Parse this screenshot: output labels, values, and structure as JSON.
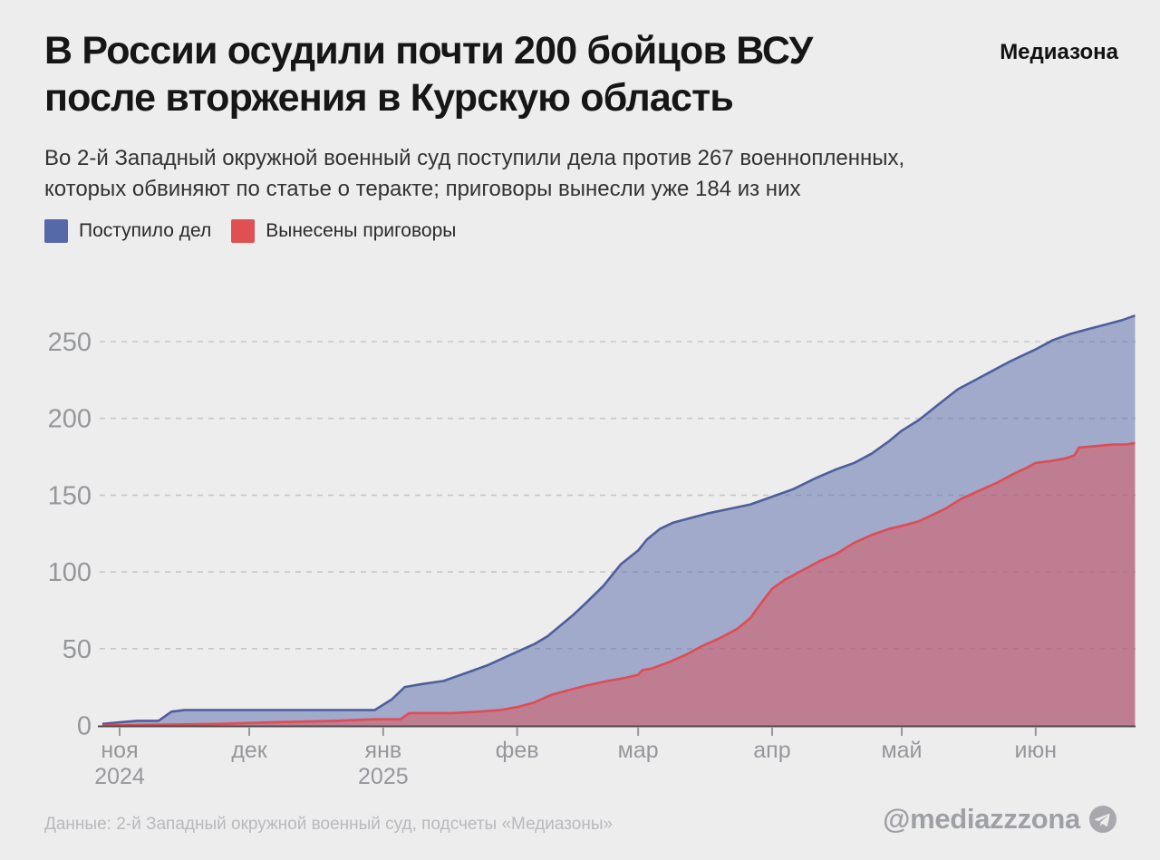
{
  "header": {
    "title_lines": [
      "В России осудили почти 200 бойцов ВСУ",
      "после вторжения в Курскую область"
    ],
    "logo": "Медиазона"
  },
  "subtitle_lines": [
    "Во 2-й Западный окружной военный суд поступили дела против 267 военнопленных,",
    "которых обвиняют по статье о теракте; приговоры вынесли уже 184 из них"
  ],
  "footer": {
    "source": "Данные: 2-й Западный окружной военный суд, подсчеты «Медиазоны»",
    "handle": "@mediazzzona"
  },
  "colors": {
    "background": "#ededee",
    "grid": "#c6c6ca",
    "axis": "#4a4a4a",
    "tick": "#98989c",
    "axis_text": "#96979b"
  },
  "chart_data": {
    "type": "area",
    "title": "В России осудили почти 200 бойцов ВСУ после вторжения в Курскую область",
    "xlabel": "",
    "ylabel": "",
    "grid": "dashed-horizontal",
    "legend_position": "top-left",
    "y_ticks": [
      0,
      50,
      100,
      150,
      200,
      250
    ],
    "ylim": [
      0,
      275
    ],
    "x_unit": "days since 2024-10-27",
    "x_range_days": [
      1,
      240
    ],
    "x_ticks": [
      {
        "label": "ноя",
        "sublabel": "2024",
        "day": 5
      },
      {
        "label": "дек",
        "sublabel": "",
        "day": 35
      },
      {
        "label": "янв",
        "sublabel": "2025",
        "day": 66
      },
      {
        "label": "фев",
        "sublabel": "",
        "day": 97
      },
      {
        "label": "мар",
        "sublabel": "",
        "day": 125
      },
      {
        "label": "апр",
        "sublabel": "",
        "day": 156
      },
      {
        "label": "май",
        "sublabel": "",
        "day": 186
      },
      {
        "label": "июн",
        "sublabel": "",
        "day": 217
      }
    ],
    "series": [
      {
        "name": "Поступило дел",
        "final_value": 267,
        "swatch_color": "#5568a7",
        "line_color": "#4d5e9c",
        "fill_color": "rgba(85,104,167,0.5)",
        "points": [
          [
            1,
            1
          ],
          [
            5,
            2
          ],
          [
            9,
            3
          ],
          [
            14,
            3
          ],
          [
            17,
            9
          ],
          [
            20,
            10
          ],
          [
            64,
            10
          ],
          [
            68,
            17
          ],
          [
            71,
            25
          ],
          [
            75,
            27
          ],
          [
            80,
            29
          ],
          [
            84,
            33
          ],
          [
            90,
            39
          ],
          [
            97,
            48
          ],
          [
            101,
            53
          ],
          [
            104,
            58
          ],
          [
            107,
            65
          ],
          [
            110,
            72
          ],
          [
            113,
            80
          ],
          [
            117,
            91
          ],
          [
            121,
            105
          ],
          [
            125,
            114
          ],
          [
            127,
            121
          ],
          [
            130,
            128
          ],
          [
            133,
            132
          ],
          [
            137,
            135
          ],
          [
            141,
            138
          ],
          [
            146,
            141
          ],
          [
            151,
            144
          ],
          [
            156,
            149
          ],
          [
            161,
            154
          ],
          [
            166,
            161
          ],
          [
            171,
            167
          ],
          [
            175,
            171
          ],
          [
            179,
            177
          ],
          [
            183,
            185
          ],
          [
            186,
            192
          ],
          [
            190,
            199
          ],
          [
            194,
            208
          ],
          [
            199,
            219
          ],
          [
            203,
            225
          ],
          [
            207,
            231
          ],
          [
            211,
            237
          ],
          [
            214,
            241
          ],
          [
            217,
            245
          ],
          [
            221,
            251
          ],
          [
            225,
            255
          ],
          [
            229,
            258
          ],
          [
            233,
            261
          ],
          [
            237,
            264
          ],
          [
            240,
            267
          ]
        ]
      },
      {
        "name": "Вынесены приговоры",
        "final_value": 184,
        "swatch_color": "#e04f52",
        "line_color": "#e04b54",
        "fill_color": "rgba(223,77,84,0.48)",
        "points": [
          [
            1,
            0
          ],
          [
            28,
            1
          ],
          [
            40,
            2
          ],
          [
            55,
            3
          ],
          [
            64,
            4
          ],
          [
            70,
            4
          ],
          [
            72,
            8
          ],
          [
            82,
            8
          ],
          [
            88,
            9
          ],
          [
            93,
            10
          ],
          [
            97,
            12
          ],
          [
            101,
            15
          ],
          [
            105,
            20
          ],
          [
            109,
            23
          ],
          [
            113,
            26
          ],
          [
            118,
            29
          ],
          [
            122,
            31
          ],
          [
            125,
            33
          ],
          [
            126,
            36
          ],
          [
            128,
            37
          ],
          [
            132,
            41
          ],
          [
            136,
            46
          ],
          [
            140,
            52
          ],
          [
            144,
            57
          ],
          [
            148,
            63
          ],
          [
            151,
            70
          ],
          [
            153,
            78
          ],
          [
            156,
            89
          ],
          [
            159,
            95
          ],
          [
            163,
            101
          ],
          [
            167,
            107
          ],
          [
            171,
            112
          ],
          [
            175,
            119
          ],
          [
            179,
            124
          ],
          [
            183,
            128
          ],
          [
            186,
            130
          ],
          [
            190,
            133
          ],
          [
            193,
            137
          ],
          [
            196,
            141
          ],
          [
            200,
            148
          ],
          [
            204,
            153
          ],
          [
            208,
            158
          ],
          [
            212,
            164
          ],
          [
            215,
            168
          ],
          [
            217,
            171
          ],
          [
            220,
            172
          ],
          [
            224,
            174
          ],
          [
            226,
            176
          ],
          [
            227,
            181
          ],
          [
            231,
            182
          ],
          [
            235,
            183
          ],
          [
            238,
            183
          ],
          [
            240,
            184
          ]
        ]
      }
    ]
  }
}
